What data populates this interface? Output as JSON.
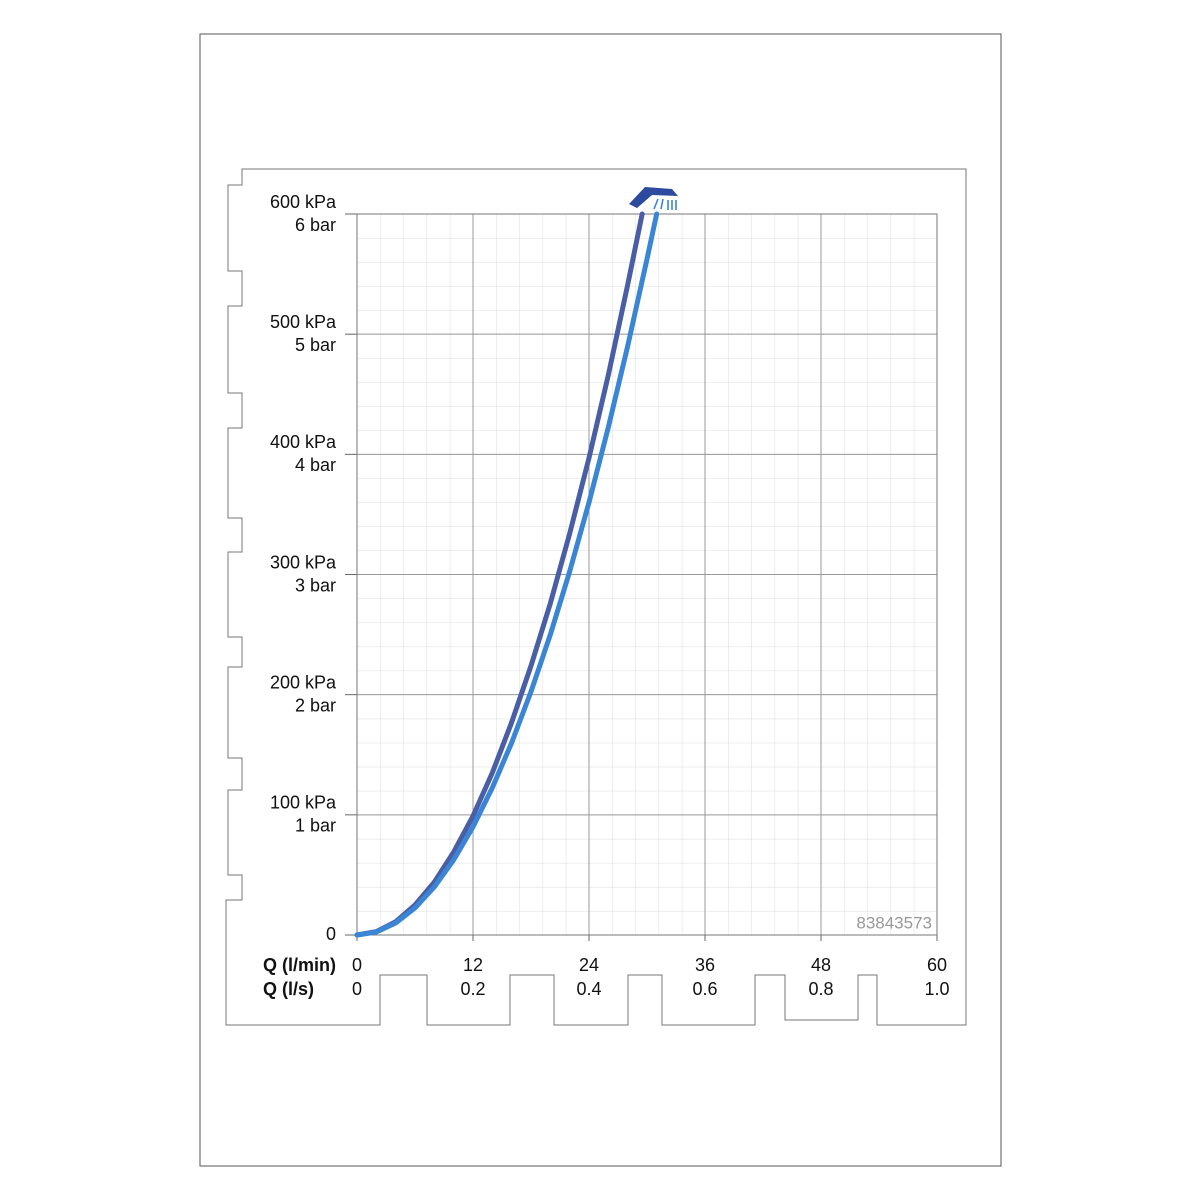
{
  "chart_data": {
    "type": "line",
    "xlabel": "Q (l/min)",
    "x2label": "Q (l/s)",
    "watermark": "83843573",
    "xlim": [
      0,
      60
    ],
    "xticks": [
      0,
      12,
      24,
      36,
      48,
      60
    ],
    "x2lim": [
      0,
      1
    ],
    "x2ticks": [
      0,
      0.2,
      0.4,
      0.6,
      0.8,
      {
        "value": 1,
        "label": "1.0"
      }
    ],
    "ylim": [
      0,
      600
    ],
    "yticks": [
      0,
      {
        "value": 100,
        "label": "100 kPa"
      },
      {
        "value": 200,
        "label": "200 kPa"
      },
      {
        "value": 300,
        "label": "300 kPa"
      },
      {
        "value": 400,
        "label": "400 kPa"
      },
      {
        "value": 500,
        "label": "500 kPa"
      },
      {
        "value": 600,
        "label": "600 kPa"
      }
    ],
    "y2lim": [
      0,
      6
    ],
    "y2ticks": [
      {
        "value": 1,
        "label": "1 bar"
      },
      {
        "value": 2,
        "label": "2 bar"
      },
      {
        "value": 3,
        "label": "3 bar"
      },
      {
        "value": 4,
        "label": "4 bar"
      },
      {
        "value": 5,
        "label": "5 bar"
      },
      {
        "value": 6,
        "label": "6 bar"
      }
    ],
    "grid": true,
    "series": [
      {
        "color": "#4a5ea6",
        "x": [
          0,
          2,
          4,
          6,
          8,
          10,
          12,
          14,
          16,
          18,
          20,
          22,
          24,
          26,
          28,
          29.5
        ],
        "values": [
          0,
          2.8,
          11,
          25,
          44,
          69,
          99,
          135,
          177,
          224,
          276,
          334,
          397,
          466,
          541,
          600
        ]
      },
      {
        "color": "#3a86d4",
        "x": [
          0,
          2,
          4,
          6,
          8,
          10,
          12,
          14,
          16,
          18,
          20,
          22,
          24,
          26,
          28,
          30,
          31
        ],
        "values": [
          0,
          2.5,
          10,
          22.5,
          40,
          62.5,
          90,
          122.5,
          160,
          202.5,
          250,
          302.5,
          360,
          422.5,
          490,
          562.5,
          600
        ]
      }
    ]
  }
}
